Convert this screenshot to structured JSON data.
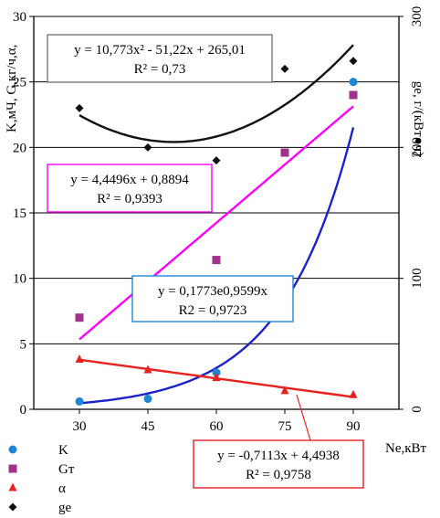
{
  "chart_data": {
    "type": "scatter",
    "categories": [
      "30",
      "45",
      "60",
      "75",
      "90"
    ],
    "x": [
      30,
      45,
      60,
      75,
      90
    ],
    "xlabel": "Ne,кВт",
    "ylabel_left": "K,мЧ, G,кг/ч,α,",
    "ylabel_right": "ge, г/(кВт●ч)",
    "xlim": [
      20,
      100
    ],
    "ylim_left": [
      0,
      30
    ],
    "ylim_right": [
      0,
      300
    ],
    "yticks_left": [
      "0",
      "5",
      "10",
      "15",
      "20",
      "25",
      "30"
    ],
    "yticks_right": [
      "0",
      "100",
      "200",
      "300"
    ],
    "grid": "horizontal",
    "legend_position": "bottom-left",
    "series": [
      {
        "name": "K",
        "axis": "left",
        "color": "#1f86d6",
        "marker": "circle",
        "values": [
          0.6,
          0.8,
          2.8,
          8.3,
          25.0
        ]
      },
      {
        "name": "Gт",
        "axis": "left",
        "color": "#a0328e",
        "marker": "square",
        "values": [
          7.0,
          9.1,
          11.4,
          19.6,
          24.0
        ]
      },
      {
        "name": "α",
        "axis": "left",
        "color": "#e8221f",
        "marker": "triangle",
        "values": [
          3.8,
          3.0,
          2.4,
          1.4,
          1.1
        ]
      },
      {
        "name": "ge",
        "axis": "right",
        "color": "#111111",
        "marker": "diamond",
        "values": [
          230,
          200,
          190,
          260,
          266
        ]
      }
    ],
    "trendlines": [
      {
        "series": "ge",
        "color": "#111111",
        "kind": "poly2",
        "coef": [
          10.773,
          -51.22,
          265.01
        ],
        "equation": "y = 10,773x² - 51,22x + 265,01",
        "r2": "R² = 0,73"
      },
      {
        "series": "Gт",
        "color": "#ff00ff",
        "kind": "linear",
        "coef": [
          4.4496,
          0.8894
        ],
        "equation": "y = 4,4496x + 0,8894",
        "r2": "R² = 0,9393"
      },
      {
        "series": "K",
        "color": "#1a22c8",
        "kind": "exp",
        "coef": [
          0.1773,
          0.9599
        ],
        "equation": "y = 0,1773e0,9599x",
        "r2": "R2 = 0,9723"
      },
      {
        "series": "α",
        "color": "#e8221f",
        "kind": "linear",
        "coef": [
          -0.7113,
          4.4938
        ],
        "equation": "y = -0,7113x + 4,4938",
        "r2": "R² = 0,9758"
      }
    ]
  },
  "legend": [
    {
      "label": "K",
      "marker": "circle",
      "color": "#1f86d6"
    },
    {
      "label": "Gт",
      "marker": "square",
      "color": "#a0328e"
    },
    {
      "label": "α",
      "marker": "triangle",
      "color": "#e8221f"
    },
    {
      "label": "ge",
      "marker": "diamond",
      "color": "#111111"
    }
  ]
}
